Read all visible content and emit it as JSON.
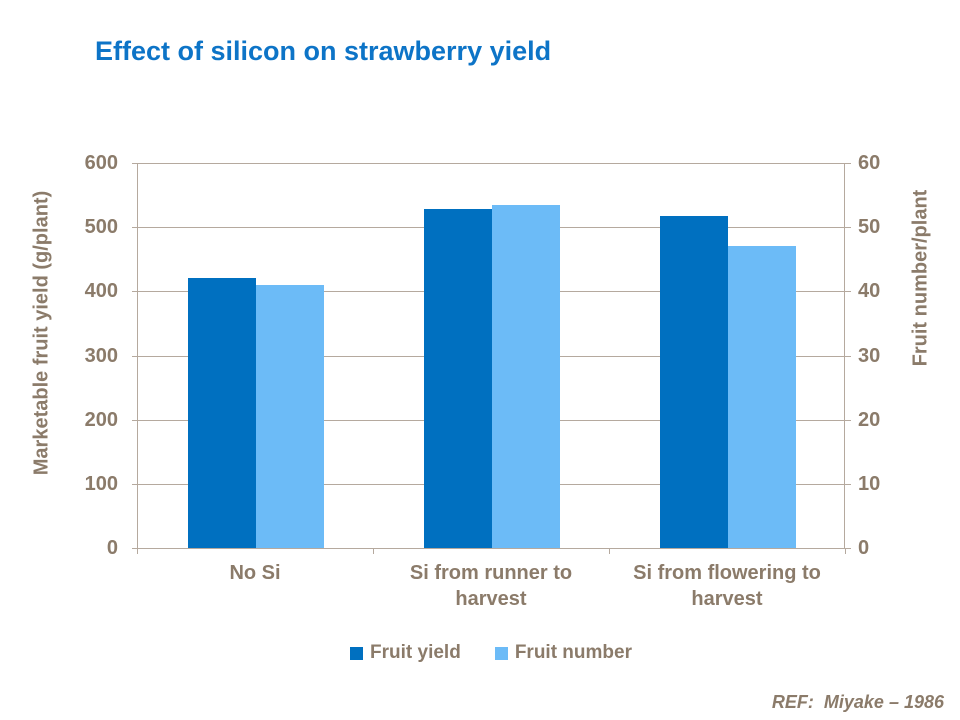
{
  "slide": {
    "title": "Effect of silicon on strawberry yield",
    "reference": "REF:  Miyake – 1986"
  },
  "colors": {
    "title_text": "#0d74c7",
    "axis_text": "#8b7b6a",
    "gridline": "#b5a99e",
    "background": "#ffffff",
    "fruit_yield_bar": "#0070c0",
    "fruit_number_bar": "#6cbbf7"
  },
  "chart_data": {
    "type": "bar",
    "title": "Effect of silicon on strawberry yield",
    "categories": [
      "No Si",
      "Si from runner to harvest",
      "Si from flowering to harvest"
    ],
    "series": [
      {
        "name": "Fruit yield",
        "axis": "left",
        "color": "#0070c0",
        "values": [
          420,
          529,
          517
        ]
      },
      {
        "name": "Fruit number",
        "axis": "right",
        "color": "#6cbbf7",
        "values": [
          41,
          53.5,
          47
        ]
      }
    ],
    "left_axis": {
      "label": "Marketable fruit yield (g/plant)",
      "min": 0,
      "max": 600,
      "step": 100,
      "ticks": [
        "600",
        "500",
        "400",
        "300",
        "200",
        "100",
        "0"
      ]
    },
    "right_axis": {
      "label": "Fruit number/plant",
      "min": 0,
      "max": 60,
      "step": 10,
      "ticks": [
        "60",
        "50",
        "40",
        "30",
        "20",
        "10",
        "0"
      ]
    },
    "grid": true,
    "legend_position": "bottom"
  }
}
